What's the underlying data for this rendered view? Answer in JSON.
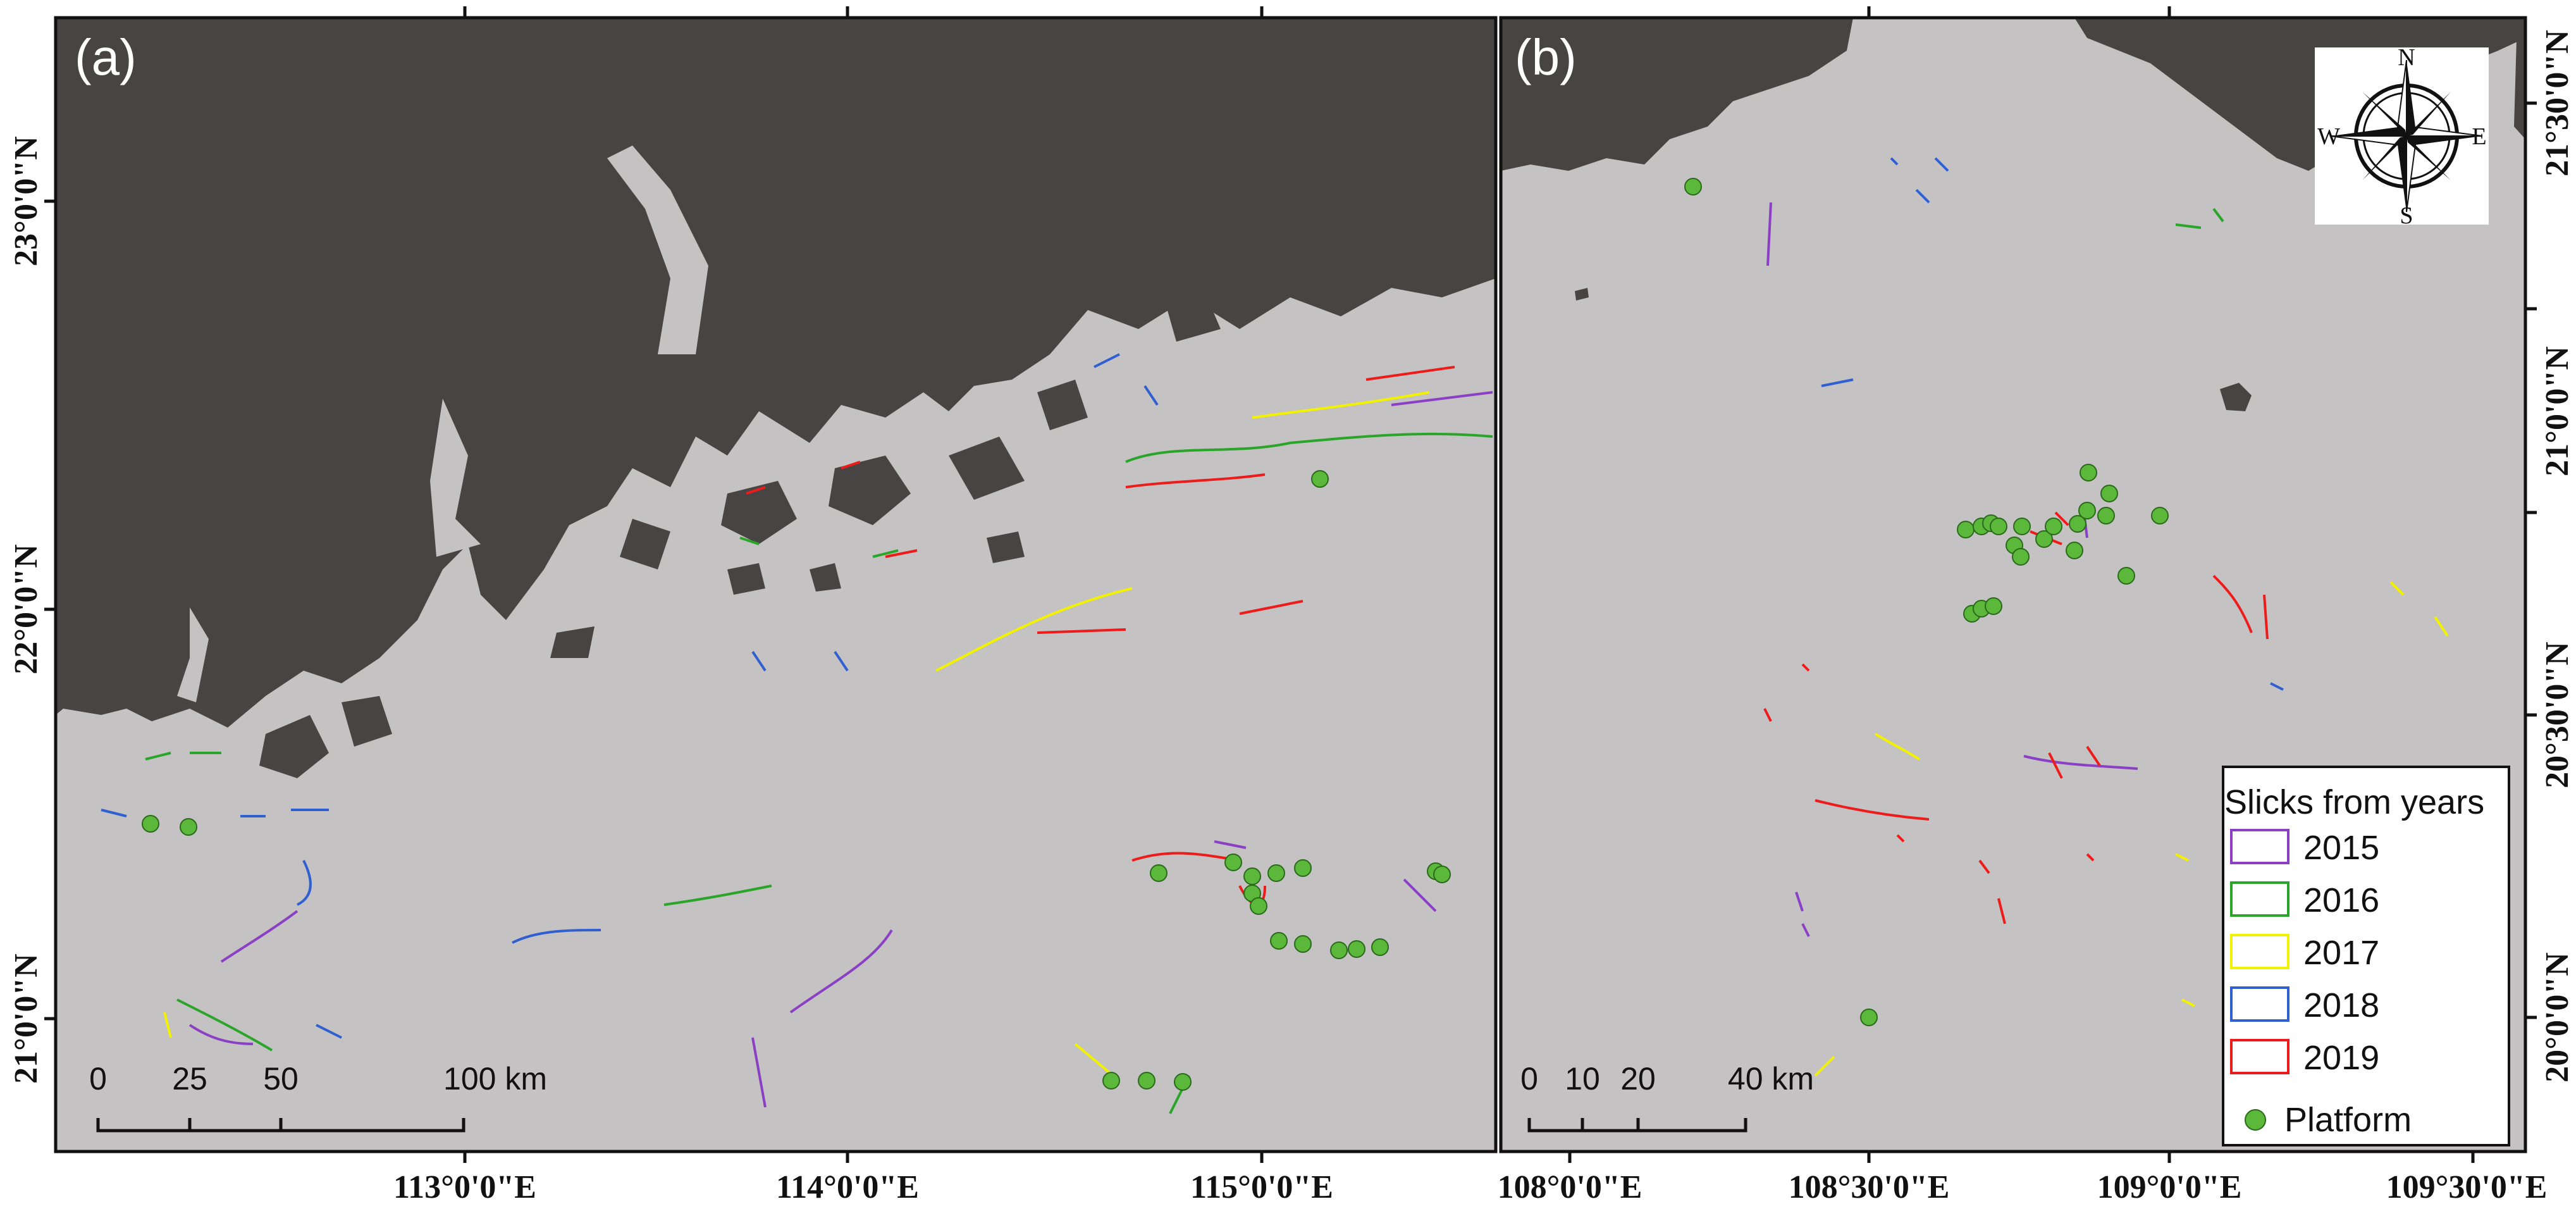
{
  "panels": [
    {
      "id": "a",
      "label": "(a)",
      "x_ticks": [
        "113°0'0\"E",
        "114°0'0\"E",
        "115°0'0\"E"
      ],
      "y_ticks": [
        "23°0'0\"N",
        "22°0'0\"N",
        "21°0'0\"N"
      ],
      "scale_bar": {
        "labels": [
          "0",
          "25",
          "50",
          "100 km"
        ]
      }
    },
    {
      "id": "b",
      "label": "(b)",
      "x_ticks": [
        "108°0'0\"E",
        "108°30'0\"E",
        "109°0'0\"E",
        "109°30'0\"E"
      ],
      "y_ticks": [
        "21°30'0\"N",
        "21°0'0\"N",
        "20°30'0\"N",
        "20°0'0\"N"
      ],
      "scale_bar": {
        "labels": [
          "0",
          "10",
          "20",
          "40 km"
        ]
      }
    }
  ],
  "compass": {
    "n": "N",
    "s": "S",
    "e": "E",
    "w": "W"
  },
  "legend": {
    "title": "Slicks from years",
    "items": [
      {
        "label": "2015",
        "color": "#8a3fc4"
      },
      {
        "label": "2016",
        "color": "#2aa52a"
      },
      {
        "label": "2017",
        "color": "#f2f200"
      },
      {
        "label": "2018",
        "color": "#2f5fd0"
      },
      {
        "label": "2019",
        "color": "#ee1b1b"
      }
    ],
    "platform": {
      "label": "Platform",
      "color": "#5bb83b"
    }
  },
  "colors": {
    "sea": "#c4c2c2",
    "land": "#474443"
  }
}
